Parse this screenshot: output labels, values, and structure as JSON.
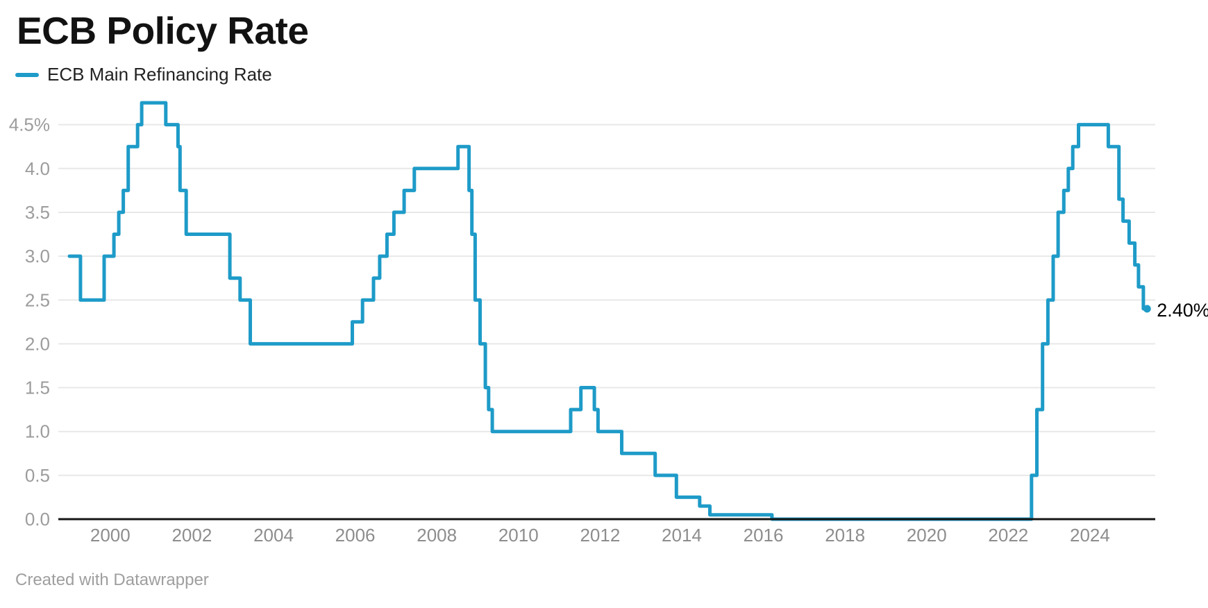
{
  "header": {
    "title": "ECB Policy Rate"
  },
  "legend": {
    "label": "ECB Main Refinancing Rate"
  },
  "footer": {
    "credit": "Created with Datawrapper"
  },
  "chart_data": {
    "type": "line",
    "step": true,
    "title": "ECB Policy Rate",
    "legend_position": "top-left",
    "grid": "horizontal",
    "x_unit": "year",
    "xlim": [
      1999.0,
      2025.6
    ],
    "ylim": [
      0,
      4.75
    ],
    "x_ticks": [
      {
        "v": 2000,
        "label": "2000"
      },
      {
        "v": 2002,
        "label": "2002"
      },
      {
        "v": 2004,
        "label": "2004"
      },
      {
        "v": 2006,
        "label": "2006"
      },
      {
        "v": 2008,
        "label": "2008"
      },
      {
        "v": 2010,
        "label": "2010"
      },
      {
        "v": 2012,
        "label": "2012"
      },
      {
        "v": 2014,
        "label": "2014"
      },
      {
        "v": 2016,
        "label": "2016"
      },
      {
        "v": 2018,
        "label": "2018"
      },
      {
        "v": 2020,
        "label": "2020"
      },
      {
        "v": 2022,
        "label": "2022"
      },
      {
        "v": 2024,
        "label": "2024"
      }
    ],
    "y_ticks": [
      {
        "v": 0.0,
        "label": "0.0"
      },
      {
        "v": 0.5,
        "label": "0.5"
      },
      {
        "v": 1.0,
        "label": "1.0"
      },
      {
        "v": 1.5,
        "label": "1.5"
      },
      {
        "v": 2.0,
        "label": "2.0"
      },
      {
        "v": 2.5,
        "label": "2.5"
      },
      {
        "v": 3.0,
        "label": "3.0"
      },
      {
        "v": 3.5,
        "label": "3.5"
      },
      {
        "v": 4.0,
        "label": "4.0"
      },
      {
        "v": 4.5,
        "label": "4.5%"
      }
    ],
    "series": [
      {
        "name": "ECB Main Refinancing Rate",
        "color": "#1e9bc8",
        "end_label": "2.40%",
        "end_value": 2.4,
        "line_end_x": 2025.4,
        "points": [
          [
            1999.0,
            3.0
          ],
          [
            1999.27,
            2.5
          ],
          [
            1999.85,
            3.0
          ],
          [
            2000.09,
            3.25
          ],
          [
            2000.21,
            3.5
          ],
          [
            2000.32,
            3.75
          ],
          [
            2000.44,
            4.25
          ],
          [
            2000.67,
            4.5
          ],
          [
            2000.77,
            4.75
          ],
          [
            2001.36,
            4.5
          ],
          [
            2001.66,
            4.25
          ],
          [
            2001.71,
            3.75
          ],
          [
            2001.86,
            3.25
          ],
          [
            2002.93,
            2.75
          ],
          [
            2003.18,
            2.5
          ],
          [
            2003.43,
            2.0
          ],
          [
            2005.93,
            2.25
          ],
          [
            2006.18,
            2.5
          ],
          [
            2006.45,
            2.75
          ],
          [
            2006.6,
            3.0
          ],
          [
            2006.78,
            3.25
          ],
          [
            2006.95,
            3.5
          ],
          [
            2007.2,
            3.75
          ],
          [
            2007.45,
            4.0
          ],
          [
            2008.52,
            4.25
          ],
          [
            2008.79,
            3.75
          ],
          [
            2008.86,
            3.25
          ],
          [
            2008.94,
            2.5
          ],
          [
            2009.06,
            2.0
          ],
          [
            2009.19,
            1.5
          ],
          [
            2009.27,
            1.25
          ],
          [
            2009.36,
            1.0
          ],
          [
            2011.28,
            1.25
          ],
          [
            2011.53,
            1.5
          ],
          [
            2011.86,
            1.25
          ],
          [
            2011.95,
            1.0
          ],
          [
            2012.53,
            0.75
          ],
          [
            2013.35,
            0.5
          ],
          [
            2013.87,
            0.25
          ],
          [
            2014.44,
            0.15
          ],
          [
            2014.69,
            0.05
          ],
          [
            2016.21,
            0.0
          ],
          [
            2022.57,
            0.5
          ],
          [
            2022.7,
            1.25
          ],
          [
            2022.84,
            2.0
          ],
          [
            2022.97,
            2.5
          ],
          [
            2023.1,
            3.0
          ],
          [
            2023.22,
            3.5
          ],
          [
            2023.36,
            3.75
          ],
          [
            2023.47,
            4.0
          ],
          [
            2023.58,
            4.25
          ],
          [
            2023.72,
            4.5
          ],
          [
            2024.45,
            4.25
          ],
          [
            2024.71,
            3.65
          ],
          [
            2024.81,
            3.4
          ],
          [
            2024.96,
            3.15
          ],
          [
            2025.1,
            2.9
          ],
          [
            2025.19,
            2.65
          ],
          [
            2025.31,
            2.4
          ]
        ]
      }
    ],
    "colors": {
      "line": "#1e9bc8",
      "grid": "#e8e8e8",
      "axis": "#161616",
      "y_tick_text": "#9c9c9c",
      "x_tick_text": "#8d8d8d",
      "end_label_text": "#000000"
    }
  }
}
